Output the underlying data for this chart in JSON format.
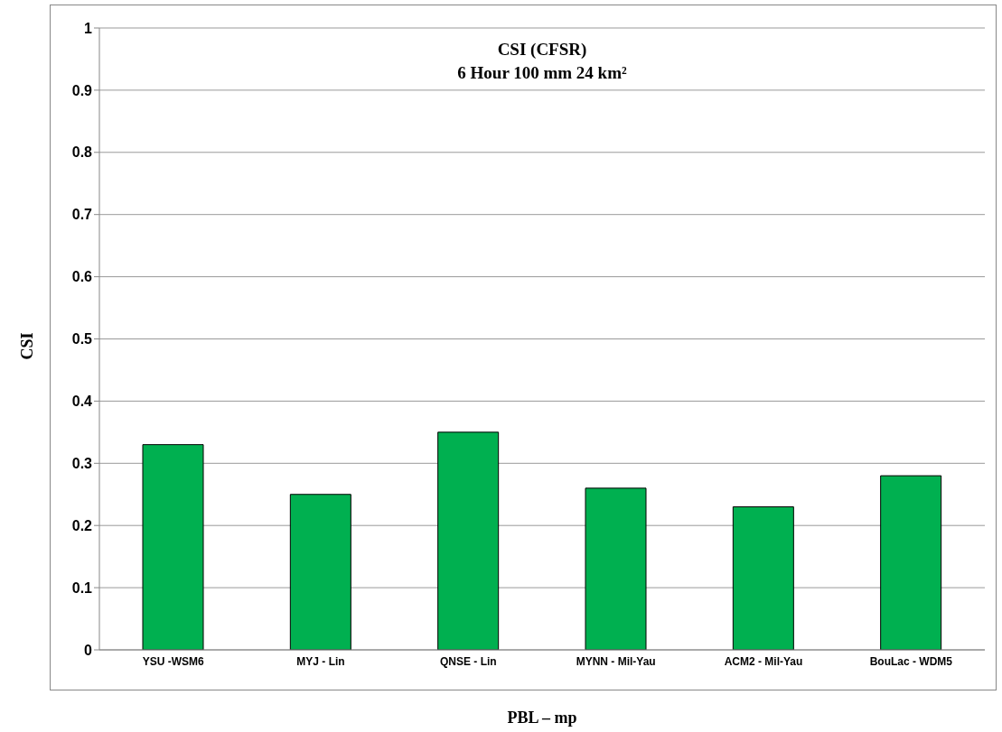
{
  "chart_data": {
    "type": "bar",
    "title": "CSI (CFSR)",
    "subtitle": "6 Hour 100 mm 24 km²",
    "xlabel": "PBL – mp",
    "ylabel": "CSI",
    "categories": [
      "YSU -WSM6",
      "MYJ - Lin",
      "QNSE - Lin",
      "MYNN - Mil-Yau",
      "ACM2 - Mil-Yau",
      "BouLac - WDM5"
    ],
    "values": [
      0.33,
      0.25,
      0.35,
      0.26,
      0.23,
      0.28
    ],
    "color": "#00b050",
    "ylim": [
      0,
      1
    ],
    "yticks": [
      0,
      {
        "value": 0.1,
        "label": "0.1"
      },
      {
        "value": 0.2,
        "label": "0.2"
      },
      {
        "value": 0.3,
        "label": "0.3"
      },
      {
        "value": 0.4,
        "label": "0.4"
      },
      {
        "value": 0.5,
        "label": "0.5"
      },
      {
        "value": 0.6,
        "label": "0.6"
      },
      {
        "value": 0.7,
        "label": "0.7"
      },
      {
        "value": 0.8,
        "label": "0.8"
      },
      {
        "value": 0.9,
        "label": "0.9"
      },
      1
    ],
    "grid": "y",
    "legend": false
  }
}
